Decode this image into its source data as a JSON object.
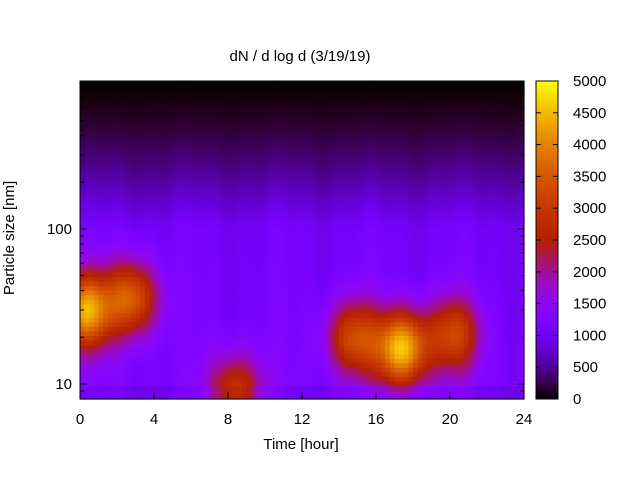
{
  "chart_data": {
    "type": "heatmap",
    "title": "dN / d log d (3/19/19)",
    "xlabel": "Time [hour]",
    "ylabel": "Particle size [nm]",
    "xlim": [
      0,
      24
    ],
    "ylim": [
      8,
      900
    ],
    "y_scale": "log",
    "x_ticks": [
      0,
      4,
      8,
      12,
      16,
      20,
      24
    ],
    "x_tick_labels": [
      "0",
      "4",
      "8",
      "12",
      "16",
      "20",
      "24"
    ],
    "y_ticks": [
      10,
      100
    ],
    "y_tick_labels": [
      "10",
      "100"
    ],
    "colorbar": {
      "min": 0,
      "max": 5000,
      "ticks": [
        0,
        500,
        1000,
        1500,
        2000,
        2500,
        3000,
        3500,
        4000,
        4500,
        5000
      ],
      "tick_labels": [
        "0",
        "500",
        "1000",
        "1500",
        "2000",
        "2500",
        "3000",
        "3500",
        "4000",
        "4500",
        "5000"
      ],
      "colormap": "gnuplot pm3d (black-purple-red-yellow)"
    },
    "background_level": 1200,
    "grid": false,
    "hotspots": [
      {
        "time": 0.3,
        "size": 30,
        "peak": 4400
      },
      {
        "time": 2.8,
        "size": 36,
        "peak": 3600
      },
      {
        "time": 14.8,
        "size": 20,
        "peak": 3300
      },
      {
        "time": 17.4,
        "size": 17,
        "peak": 4600
      },
      {
        "time": 20.2,
        "size": 21,
        "peak": 3200
      },
      {
        "time": 8.4,
        "size": 9,
        "peak": 3000
      }
    ]
  }
}
